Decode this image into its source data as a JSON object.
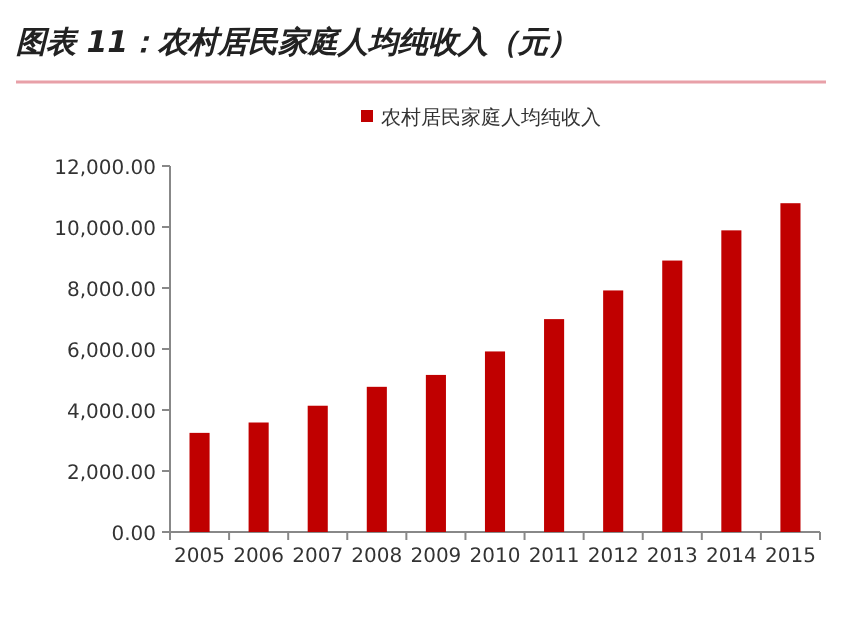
{
  "chart_data": {
    "type": "bar",
    "title": "图表 11：农村居民家庭人均纯收入（元）",
    "categories": [
      "2005",
      "2006",
      "2007",
      "2008",
      "2009",
      "2010",
      "2011",
      "2012",
      "2013",
      "2014",
      "2015"
    ],
    "series": [
      {
        "name": "农村居民家庭人均纯收入",
        "color": "#c00000",
        "values": [
          3250,
          3590,
          4140,
          4760,
          5150,
          5920,
          6980,
          7920,
          8900,
          9890,
          10780
        ]
      }
    ],
    "ylim": [
      0,
      12000
    ],
    "yticks": [
      {
        "value": 0,
        "label": "0.00"
      },
      {
        "value": 2000,
        "label": "2,000.00"
      },
      {
        "value": 4000,
        "label": "4,000.00"
      },
      {
        "value": 6000,
        "label": "6,000.00"
      },
      {
        "value": 8000,
        "label": "8,000.00"
      },
      {
        "value": 10000,
        "label": "10,000.00"
      },
      {
        "value": 12000,
        "label": "12,000.00"
      }
    ],
    "grid": false,
    "legend": "top"
  }
}
